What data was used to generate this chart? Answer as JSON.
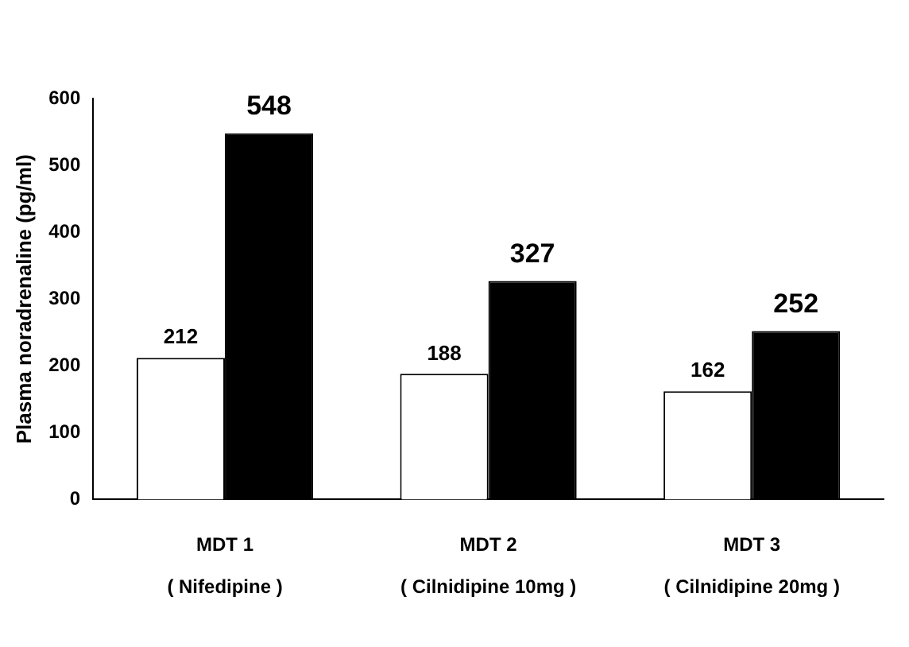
{
  "chart_data": {
    "type": "bar",
    "ylabel": "Plasma noradrenaline (pg/ml)",
    "categories": [
      "MDT 1\n( Nifedipine )",
      "MDT 2\n( Cilnidipine 10mg )",
      "MDT 3\n( Cilnidipine 20mg )"
    ],
    "series": [
      {
        "color": "#ffffff",
        "values": [
          212,
          188,
          162
        ]
      },
      {
        "color": "#000000",
        "values": [
          548,
          327,
          252
        ]
      }
    ],
    "ylim": [
      0,
      600
    ],
    "yticks": [
      0,
      100,
      200,
      300,
      400,
      500,
      600
    ],
    "grid": false,
    "legend": false,
    "data_labels": true
  }
}
